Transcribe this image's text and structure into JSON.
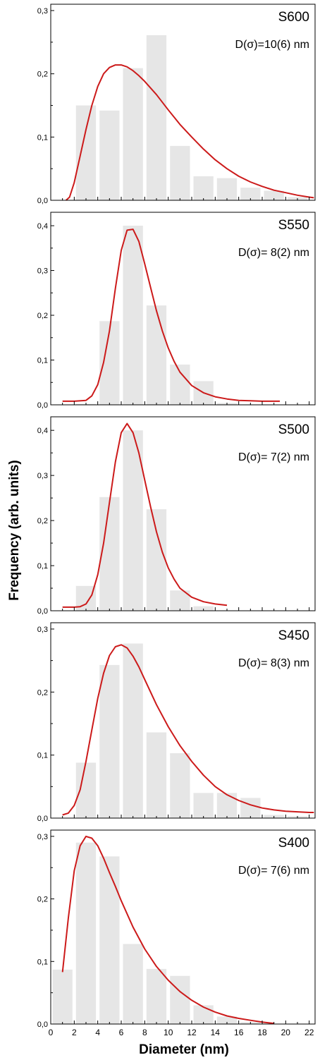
{
  "figure": {
    "ylabel": "Frequency (arb. units)",
    "xlabel": "Diameter (nm)",
    "x_tick_labels": [
      "0",
      "2",
      "4",
      "6",
      "8",
      "10",
      "12",
      "14",
      "16",
      "18",
      "20",
      "22"
    ]
  },
  "colors": {
    "bar": "#e6e6e6",
    "curve": "#cc1a1a",
    "axis": "#000000"
  },
  "chart_data": [
    {
      "type": "bar",
      "title": "S600",
      "annotation": "D(σ)=10(6) nm",
      "xlim": [
        0,
        22.5
      ],
      "ylim": [
        0,
        0.31
      ],
      "yticks": [
        "0,0",
        "0,1",
        "0,2",
        "0,3"
      ],
      "ytick_values": [
        0,
        0.1,
        0.2,
        0.3
      ],
      "categories": [
        3,
        5,
        7,
        9,
        11,
        13,
        15,
        17,
        19,
        21
      ],
      "values": [
        0.15,
        0.142,
        0.209,
        0.261,
        0.086,
        0.038,
        0.035,
        0.02,
        0.015,
        0.005
      ],
      "fit": {
        "x": [
          1.3,
          1.6,
          2,
          2.5,
          3,
          3.5,
          4,
          4.5,
          5,
          5.5,
          6,
          6.5,
          7,
          7.5,
          8,
          9,
          10,
          11,
          12,
          13,
          14,
          15,
          16,
          17,
          18,
          19,
          20,
          21,
          22,
          22.4
        ],
        "y": [
          0,
          0.005,
          0.028,
          0.07,
          0.112,
          0.15,
          0.18,
          0.2,
          0.21,
          0.214,
          0.214,
          0.211,
          0.205,
          0.197,
          0.188,
          0.167,
          0.143,
          0.12,
          0.1,
          0.081,
          0.064,
          0.05,
          0.038,
          0.029,
          0.022,
          0.016,
          0.012,
          0.008,
          0.005,
          0.004
        ]
      }
    },
    {
      "type": "bar",
      "title": "S550",
      "annotation": "D(σ)= 8(2) nm",
      "xlim": [
        0,
        22.5
      ],
      "ylim": [
        0,
        0.43
      ],
      "yticks": [
        "0,0",
        "0,1",
        "0,2",
        "0,3",
        "0,4"
      ],
      "ytick_values": [
        0,
        0.1,
        0.2,
        0.3,
        0.4
      ],
      "categories": [
        3,
        5,
        7,
        9,
        11,
        13,
        15
      ],
      "values": [
        0.002,
        0.187,
        0.4,
        0.222,
        0.09,
        0.053,
        0.004
      ],
      "fit": {
        "x": [
          1,
          2,
          3,
          3.5,
          4,
          4.5,
          5,
          5.5,
          6,
          6.5,
          7,
          7.5,
          8,
          8.5,
          9,
          9.5,
          10,
          10.5,
          11,
          12,
          13,
          14,
          15,
          16,
          17,
          18,
          19,
          19.5
        ],
        "y": [
          0.008,
          0.008,
          0.01,
          0.02,
          0.045,
          0.095,
          0.165,
          0.26,
          0.345,
          0.39,
          0.392,
          0.365,
          0.315,
          0.262,
          0.21,
          0.165,
          0.127,
          0.097,
          0.073,
          0.043,
          0.027,
          0.018,
          0.013,
          0.01,
          0.009,
          0.008,
          0.008,
          0.008
        ]
      }
    },
    {
      "type": "bar",
      "title": "S500",
      "annotation": "D(σ)= 7(2) nm",
      "xlim": [
        0,
        22.5
      ],
      "ylim": [
        0,
        0.43
      ],
      "yticks": [
        "0,0",
        "0,1",
        "0,2",
        "0,3",
        "0,4"
      ],
      "ytick_values": [
        0,
        0.1,
        0.2,
        0.3,
        0.4
      ],
      "categories": [
        3,
        5,
        7,
        9,
        11,
        13
      ],
      "values": [
        0.055,
        0.252,
        0.4,
        0.225,
        0.045,
        0.01
      ],
      "fit": {
        "x": [
          1,
          2,
          2.5,
          3,
          3.5,
          4,
          4.5,
          5,
          5.5,
          6,
          6.5,
          7,
          7.5,
          8,
          8.5,
          9,
          9.5,
          10,
          10.5,
          11,
          12,
          13,
          14,
          15
        ],
        "y": [
          0.008,
          0.008,
          0.009,
          0.015,
          0.035,
          0.08,
          0.15,
          0.24,
          0.33,
          0.395,
          0.415,
          0.395,
          0.35,
          0.29,
          0.23,
          0.175,
          0.13,
          0.095,
          0.07,
          0.05,
          0.03,
          0.02,
          0.015,
          0.012
        ]
      }
    },
    {
      "type": "bar",
      "title": "S450",
      "annotation": "D(σ)= 8(3) nm",
      "xlim": [
        0,
        22.5
      ],
      "ylim": [
        0,
        0.31
      ],
      "yticks": [
        "0,0",
        "0,1",
        "0,2",
        "0,3"
      ],
      "ytick_values": [
        0,
        0.1,
        0.2,
        0.3
      ],
      "categories": [
        3,
        5,
        7,
        9,
        11,
        13,
        15,
        17,
        19,
        21
      ],
      "values": [
        0.088,
        0.243,
        0.277,
        0.136,
        0.103,
        0.04,
        0.04,
        0.032,
        0.005,
        0.003
      ],
      "fit": {
        "x": [
          1,
          1.5,
          2,
          2.5,
          3,
          3.5,
          4,
          4.5,
          5,
          5.5,
          6,
          6.5,
          7,
          7.5,
          8,
          9,
          10,
          11,
          12,
          13,
          14,
          15,
          16,
          17,
          18,
          19,
          20,
          21,
          22,
          22.4
        ],
        "y": [
          0.005,
          0.008,
          0.02,
          0.045,
          0.09,
          0.14,
          0.19,
          0.23,
          0.258,
          0.272,
          0.275,
          0.27,
          0.257,
          0.24,
          0.22,
          0.18,
          0.145,
          0.115,
          0.09,
          0.068,
          0.05,
          0.037,
          0.028,
          0.021,
          0.016,
          0.013,
          0.011,
          0.01,
          0.009,
          0.009
        ]
      }
    },
    {
      "type": "bar",
      "title": "S400",
      "annotation": "D(σ)= 7(6) nm",
      "xlim": [
        0,
        22.5
      ],
      "ylim": [
        0,
        0.31
      ],
      "yticks": [
        "0,0",
        "0,1",
        "0,2",
        "0,3"
      ],
      "ytick_values": [
        0,
        0.1,
        0.2,
        0.3
      ],
      "categories": [
        1,
        3,
        5,
        7,
        9,
        11,
        13,
        15,
        17
      ],
      "values": [
        0.087,
        0.29,
        0.268,
        0.128,
        0.088,
        0.077,
        0.03,
        0.012,
        0.003
      ],
      "fit": {
        "x": [
          1,
          1.5,
          2,
          2.5,
          3,
          3.5,
          4,
          4.5,
          5,
          5.5,
          6,
          7,
          8,
          9,
          10,
          11,
          12,
          13,
          14,
          15,
          16,
          17,
          18,
          19
        ],
        "y": [
          0.083,
          0.17,
          0.245,
          0.285,
          0.3,
          0.297,
          0.285,
          0.265,
          0.242,
          0.22,
          0.197,
          0.155,
          0.12,
          0.092,
          0.07,
          0.052,
          0.038,
          0.027,
          0.019,
          0.013,
          0.009,
          0.006,
          0.003,
          0.001
        ]
      }
    }
  ]
}
